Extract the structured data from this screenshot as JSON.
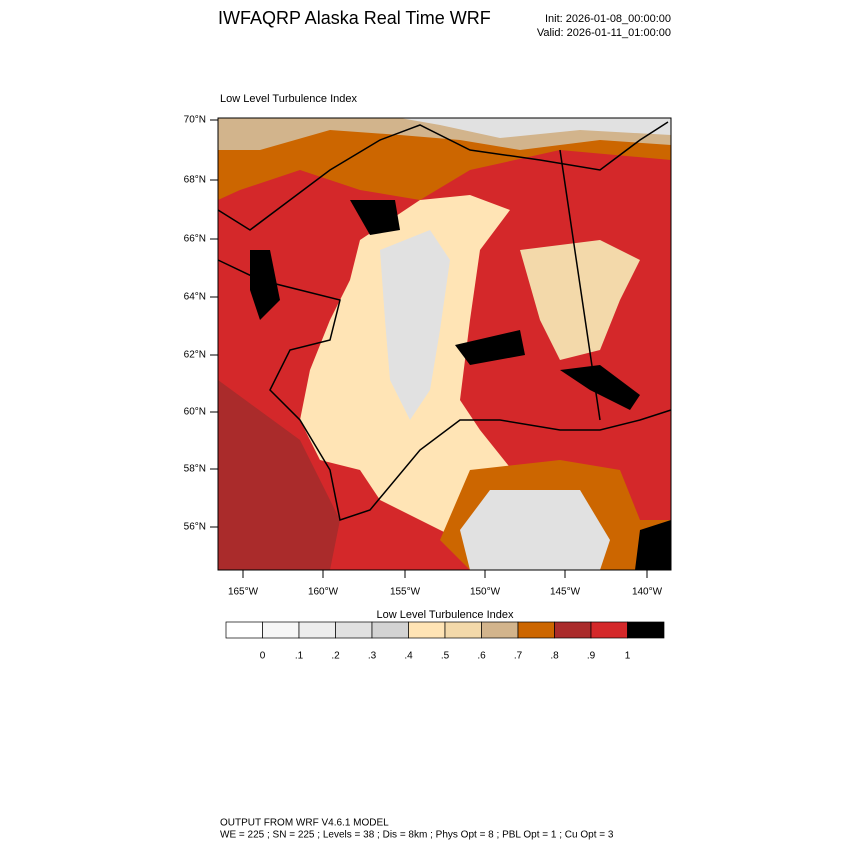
{
  "header": {
    "title": "IWFAQRP Alaska Real Time WRF",
    "init": "Init: 2026-01-08_00:00:00",
    "valid": "Valid: 2026-01-11_01:00:00"
  },
  "map": {
    "label": "Low Level Turbulence Index",
    "lat_labels": [
      "70°N",
      "68°N",
      "66°N",
      "64°N",
      "62°N",
      "60°N",
      "58°N",
      "56°N"
    ],
    "lon_labels": [
      "165°W",
      "160°W",
      "155°W",
      "150°W",
      "145°W",
      "140°W"
    ]
  },
  "colorbar": {
    "title": "Low Level Turbulence Index",
    "colors": [
      "#ffffff",
      "#f6f6f6",
      "#ededed",
      "#e1e1e1",
      "#d3d3d3",
      "#ffe4b5",
      "#f3d9aa",
      "#d2b48c",
      "#cc6600",
      "#aa2b2b",
      "#d4282a",
      "#000000"
    ],
    "labels": [
      "0",
      ".1",
      ".2",
      ".3",
      ".4",
      ".5",
      ".6",
      ".7",
      ".8",
      ".9",
      "1"
    ]
  },
  "footer": {
    "line1": "OUTPUT FROM WRF V4.6.1 MODEL",
    "line2": "WE = 225 ; SN = 225 ; Levels = 38 ; Dis = 8km ; Phys Opt = 8 ; PBL Opt = 1 ; Cu Opt = 3"
  }
}
